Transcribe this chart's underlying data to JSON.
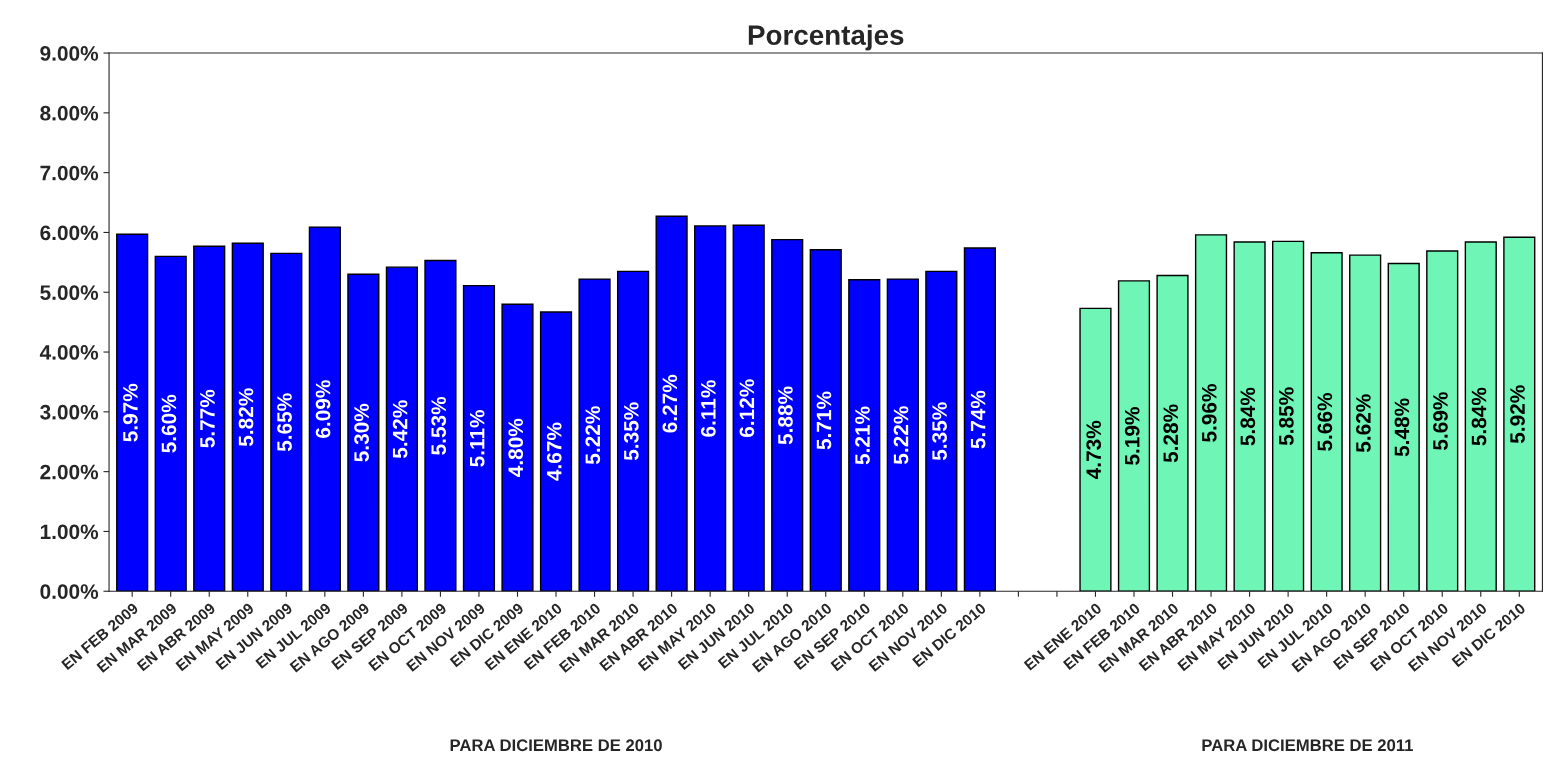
{
  "chart_data": {
    "type": "bar",
    "title": "Porcentajes",
    "categories": [
      "EN FEB 2009",
      "EN MAR 2009",
      "EN ABR 2009",
      "EN MAY 2009",
      "EN JUN 2009",
      "EN JUL 2009",
      "EN AGO 2009",
      "EN SEP 2009",
      "EN OCT 2009",
      "EN NOV 2009",
      "EN DIC 2009",
      "EN ENE 2010",
      "EN FEB 2010",
      "EN MAR 2010",
      "EN ABR 2010",
      "EN MAY 2010",
      "EN JUN 2010",
      "EN JUL 2010",
      "EN AGO 2010",
      "EN SEP 2010",
      "EN OCT 2010",
      "EN NOV 2010",
      "EN DIC 2010",
      null,
      null,
      "EN ENE 2010",
      "EN FEB 2010",
      "EN MAR 2010",
      "EN ABR 2010",
      "EN MAY 2010",
      "EN JUN 2010",
      "EN JUL 2010",
      "EN AGO 2010",
      "EN SEP 2010",
      "EN OCT 2010",
      "EN NOV 2010",
      "EN DIC 2010"
    ],
    "series": [
      {
        "color": "#0000ff",
        "values": [
          5.97,
          5.6,
          5.77,
          5.82,
          5.65,
          6.09,
          5.3,
          5.42,
          5.53,
          5.11,
          4.8,
          4.67,
          5.22,
          5.35,
          6.27,
          6.11,
          6.12,
          5.88,
          5.71,
          5.21,
          5.22,
          5.35,
          5.74,
          null,
          null,
          null,
          null,
          null,
          null,
          null,
          null,
          null,
          null,
          null,
          null,
          null,
          null
        ],
        "value_labels": [
          "5.97%",
          "5.60%",
          "5.77%",
          "5.82%",
          "5.65%",
          "6.09%",
          "5.30%",
          "5.42%",
          "5.53%",
          "5.11%",
          "4.80%",
          "4.67%",
          "5.22%",
          "5.35%",
          "6.27%",
          "6.11%",
          "6.12%",
          "5.88%",
          "5.71%",
          "5.21%",
          "5.22%",
          "5.35%",
          "5.74%",
          null,
          null,
          null,
          null,
          null,
          null,
          null,
          null,
          null,
          null,
          null,
          null,
          null,
          null
        ]
      },
      {
        "color": "#6ff5b5",
        "values": [
          null,
          null,
          null,
          null,
          null,
          null,
          null,
          null,
          null,
          null,
          null,
          null,
          null,
          null,
          null,
          null,
          null,
          null,
          null,
          null,
          null,
          null,
          null,
          null,
          null,
          4.73,
          5.19,
          5.28,
          5.96,
          5.84,
          5.85,
          5.66,
          5.62,
          5.48,
          5.69,
          5.84,
          5.92
        ],
        "value_labels": [
          null,
          null,
          null,
          null,
          null,
          null,
          null,
          null,
          null,
          null,
          null,
          null,
          null,
          null,
          null,
          null,
          null,
          null,
          null,
          null,
          null,
          null,
          null,
          null,
          null,
          "4.73%",
          "5.19%",
          "5.28%",
          "5.96%",
          "5.84%",
          "5.85%",
          "5.66%",
          "5.62%",
          "5.48%",
          "5.69%",
          "5.84%",
          "5.92%"
        ]
      }
    ],
    "ylim": [
      0,
      9
    ],
    "yticks": [
      {
        "value": 0,
        "label": "0.00%"
      },
      {
        "value": 1,
        "label": "1.00%"
      },
      {
        "value": 2,
        "label": "2.00%"
      },
      {
        "value": 3,
        "label": "3.00%"
      },
      {
        "value": 4,
        "label": "4.00%"
      },
      {
        "value": 5,
        "label": "5.00%"
      },
      {
        "value": 6,
        "label": "6.00%"
      },
      {
        "value": 7,
        "label": "7.00%"
      },
      {
        "value": 8,
        "label": "8.00%"
      },
      {
        "value": 9,
        "label": "9.00%"
      }
    ],
    "grid": false,
    "legend": false,
    "annotations": [
      "PARA DICIEMBRE DE 2010",
      "PARA DICIEMBRE DE 2011"
    ]
  }
}
